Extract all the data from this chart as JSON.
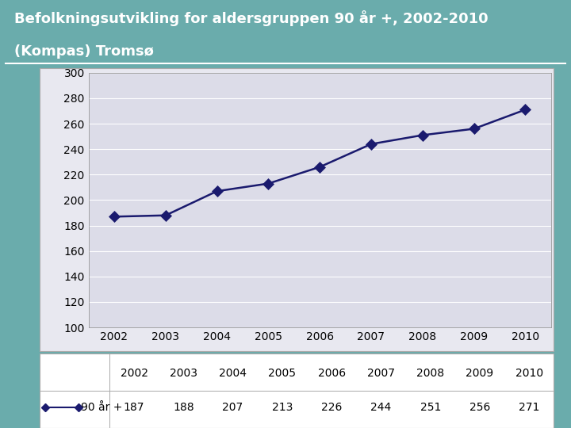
{
  "title_line1": "Befolkningsutvikling for aldersgruppen 90 år +, 2002-2010",
  "title_line2": "(Kompas) Tromsø",
  "header_bg_color": "#7878c8",
  "header_text_color": "#ffffff",
  "outer_bg_color": "#6aacac",
  "chart_outer_bg_color": "#e8e8f0",
  "plot_bg_color": "#dcdce8",
  "years": [
    2002,
    2003,
    2004,
    2005,
    2006,
    2007,
    2008,
    2009,
    2010
  ],
  "values": [
    187,
    188,
    207,
    213,
    226,
    244,
    251,
    256,
    271
  ],
  "line_color": "#1a1a6e",
  "marker_color": "#1a1a6e",
  "ylim": [
    100,
    300
  ],
  "yticks": [
    100,
    120,
    140,
    160,
    180,
    200,
    220,
    240,
    260,
    280,
    300
  ],
  "legend_label": "90 år +",
  "grid_color": "#ffffff",
  "axis_line_color": "#aaaaaa",
  "title_fontsize": 13,
  "tick_fontsize": 10,
  "table_fontsize": 10
}
